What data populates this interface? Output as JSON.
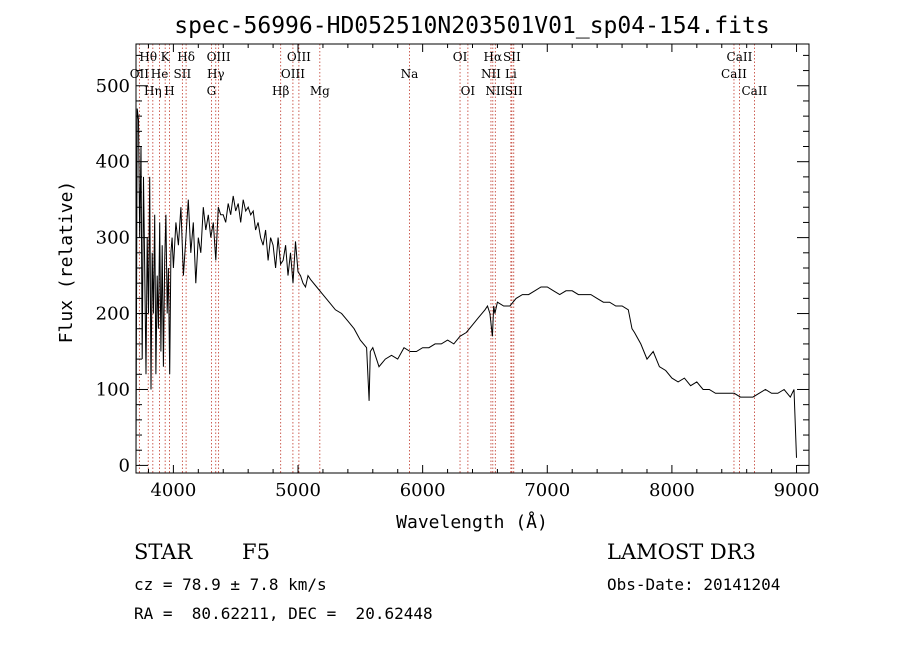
{
  "chart_data": {
    "type": "line",
    "title": "spec-56996-HD052510N203501V01_sp04-154.fits",
    "xlabel": "Wavelength (Å)",
    "ylabel": "Flux (relative)",
    "xlim": [
      3700,
      9100
    ],
    "ylim": [
      -10,
      555
    ],
    "xticks": [
      4000,
      5000,
      6000,
      7000,
      8000,
      9000
    ],
    "yticks": [
      0,
      100,
      200,
      300,
      400,
      500
    ],
    "spectrum": {
      "name": "flux",
      "x": [
        3700,
        3710,
        3720,
        3730,
        3740,
        3750,
        3760,
        3770,
        3780,
        3790,
        3800,
        3810,
        3820,
        3830,
        3840,
        3850,
        3860,
        3870,
        3880,
        3890,
        3900,
        3910,
        3920,
        3930,
        3940,
        3950,
        3960,
        3970,
        3980,
        3990,
        4000,
        4020,
        4040,
        4060,
        4080,
        4100,
        4120,
        4140,
        4160,
        4180,
        4200,
        4220,
        4240,
        4260,
        4280,
        4300,
        4320,
        4340,
        4360,
        4380,
        4400,
        4420,
        4440,
        4460,
        4480,
        4500,
        4520,
        4540,
        4560,
        4580,
        4600,
        4620,
        4640,
        4660,
        4680,
        4700,
        4720,
        4740,
        4760,
        4780,
        4800,
        4820,
        4840,
        4860,
        4880,
        4900,
        4920,
        4940,
        4960,
        4980,
        5000,
        5020,
        5040,
        5060,
        5080,
        5100,
        5150,
        5200,
        5250,
        5300,
        5350,
        5400,
        5450,
        5500,
        5550,
        5570,
        5580,
        5600,
        5650,
        5700,
        5750,
        5800,
        5850,
        5900,
        5950,
        6000,
        6050,
        6100,
        6150,
        6200,
        6250,
        6300,
        6350,
        6400,
        6450,
        6500,
        6520,
        6540,
        6560,
        6570,
        6580,
        6600,
        6650,
        6700,
        6750,
        6800,
        6850,
        6900,
        6950,
        7000,
        7050,
        7100,
        7150,
        7200,
        7250,
        7300,
        7350,
        7400,
        7450,
        7500,
        7550,
        7600,
        7650,
        7680,
        7700,
        7750,
        7800,
        7850,
        7900,
        7950,
        8000,
        8050,
        8100,
        8150,
        8200,
        8250,
        8300,
        8350,
        8400,
        8450,
        8500,
        8550,
        8600,
        8650,
        8700,
        8750,
        8800,
        8850,
        8900,
        8950,
        8980,
        9000
      ],
      "y": [
        10,
        470,
        455,
        300,
        420,
        140,
        380,
        260,
        120,
        300,
        200,
        380,
        100,
        280,
        200,
        330,
        120,
        250,
        180,
        320,
        150,
        290,
        130,
        270,
        330,
        200,
        260,
        120,
        280,
        300,
        260,
        320,
        290,
        340,
        250,
        300,
        350,
        280,
        320,
        240,
        300,
        280,
        340,
        310,
        330,
        300,
        320,
        270,
        340,
        330,
        330,
        320,
        345,
        330,
        355,
        335,
        345,
        320,
        350,
        335,
        340,
        330,
        335,
        310,
        320,
        300,
        290,
        310,
        270,
        300,
        290,
        260,
        300,
        265,
        270,
        290,
        250,
        280,
        240,
        295,
        255,
        250,
        240,
        235,
        250,
        245,
        235,
        225,
        215,
        205,
        200,
        190,
        180,
        165,
        155,
        85,
        150,
        155,
        130,
        140,
        145,
        140,
        155,
        150,
        150,
        155,
        155,
        160,
        160,
        165,
        160,
        170,
        175,
        185,
        195,
        205,
        210,
        200,
        170,
        210,
        200,
        215,
        210,
        210,
        220,
        225,
        225,
        230,
        235,
        235,
        230,
        225,
        230,
        230,
        225,
        225,
        225,
        220,
        215,
        215,
        210,
        210,
        205,
        180,
        175,
        160,
        140,
        150,
        130,
        125,
        115,
        110,
        115,
        105,
        110,
        100,
        100,
        95,
        95,
        95,
        95,
        90,
        90,
        90,
        95,
        100,
        95,
        95,
        100,
        90,
        100,
        10
      ]
    },
    "spectral_lines": [
      {
        "name": "Hθ",
        "wavelength": 3798,
        "row": 0
      },
      {
        "name": "OII",
        "wavelength": 3727,
        "row": 1
      },
      {
        "name": "Hη",
        "wavelength": 3835,
        "row": 2
      },
      {
        "name": "He",
        "wavelength": 3889,
        "row": 1
      },
      {
        "name": "K",
        "wavelength": 3934,
        "row": 0
      },
      {
        "name": "H",
        "wavelength": 3969,
        "row": 2
      },
      {
        "name": "SII",
        "wavelength": 4072,
        "row": 1
      },
      {
        "name": "Hδ",
        "wavelength": 4102,
        "row": 0
      },
      {
        "name": "Hγ",
        "wavelength": 4340,
        "row": 1
      },
      {
        "name": "OIII",
        "wavelength": 4363,
        "row": 0
      },
      {
        "name": "G",
        "wavelength": 4305,
        "row": 2
      },
      {
        "name": "Hβ",
        "wavelength": 4861,
        "row": 2
      },
      {
        "name": "OIII",
        "wavelength": 4959,
        "row": 1
      },
      {
        "name": "OIII",
        "wavelength": 5007,
        "row": 0
      },
      {
        "name": "Mg",
        "wavelength": 5175,
        "row": 2
      },
      {
        "name": "Na",
        "wavelength": 5894,
        "row": 1
      },
      {
        "name": "OI",
        "wavelength": 6300,
        "row": 0
      },
      {
        "name": "OI",
        "wavelength": 6363,
        "row": 2
      },
      {
        "name": "NII",
        "wavelength": 6548,
        "row": 1
      },
      {
        "name": "Hα",
        "wavelength": 6563,
        "row": 0
      },
      {
        "name": "NII",
        "wavelength": 6583,
        "row": 2
      },
      {
        "name": "Li",
        "wavelength": 6708,
        "row": 1
      },
      {
        "name": "SII",
        "wavelength": 6716,
        "row": 0
      },
      {
        "name": "SII",
        "wavelength": 6731,
        "row": 2
      },
      {
        "name": "CaII",
        "wavelength": 8498,
        "row": 1
      },
      {
        "name": "CaII",
        "wavelength": 8542,
        "row": 0
      },
      {
        "name": "CaII",
        "wavelength": 8662,
        "row": 2
      }
    ]
  },
  "info": {
    "class_label": "STAR",
    "subclass": "F5",
    "survey": "LAMOST DR3",
    "redshift": "cz = 78.9 ± 7.8 km/s",
    "obs_date": "Obs-Date: 20141204",
    "coords": "RA =  80.62211, DEC =  20.62448"
  }
}
